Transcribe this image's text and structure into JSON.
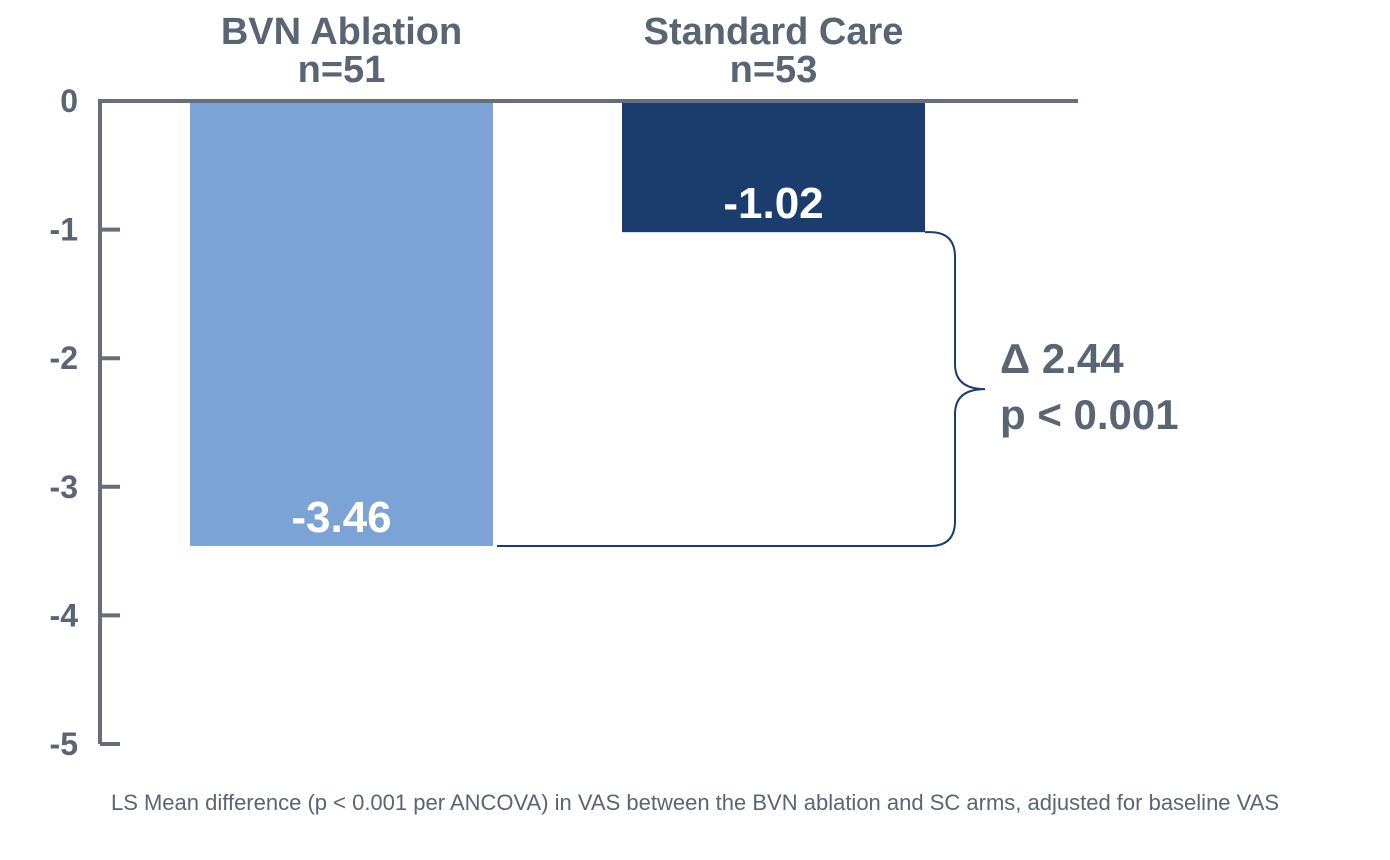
{
  "chart_data": {
    "type": "bar",
    "categories": [
      "BVN Ablation",
      "Standard Care"
    ],
    "category_n": [
      "n=51",
      "n=53"
    ],
    "values": [
      -3.46,
      -1.02
    ],
    "value_labels": [
      "-3.46",
      "-1.02"
    ],
    "colors": [
      "#7BA3D6",
      "#1B3D6E"
    ],
    "ylim": [
      -5,
      0
    ],
    "yticks": [
      0,
      -1,
      -2,
      -3,
      -4,
      -5
    ],
    "ytick_labels": [
      "0",
      "-1",
      "-2",
      "-3",
      "-4",
      "-5"
    ],
    "annotation": {
      "delta": "Δ 2.44",
      "p": "p < 0.001"
    },
    "axis_color": "#656E79",
    "bracket_color": "#1B3D6E"
  },
  "footnote": "LS Mean difference (p < 0.001 per ANCOVA) in VAS between the BVN ablation and SC arms, adjusted for baseline VAS"
}
